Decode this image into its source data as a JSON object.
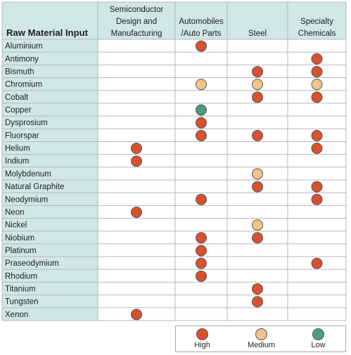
{
  "chart_data": {
    "type": "table",
    "row_header": "Raw Material Input",
    "columns": [
      [
        "Semiconductor",
        "Design and",
        "Manufacturing"
      ],
      [
        "Automobiles",
        "/Auto Parts"
      ],
      [
        "Steel"
      ],
      [
        "Specialty",
        "Chemicals"
      ]
    ],
    "rows": [
      "Aluminium",
      "Antimony",
      "Bismuth",
      "Chromium",
      "Cobalt",
      "Copper",
      "Dysprosium",
      "Fluorspar",
      "Helium",
      "Indium",
      "Molybdenum",
      "Natural Graphite",
      "Neodymium",
      "Neon",
      "Nickel",
      "Niobium",
      "Platinum",
      "Praseodymium",
      "Rhodium",
      "Titanium",
      "Tungsten",
      "Xenon"
    ],
    "ratings": [
      [
        "",
        "H",
        "",
        ""
      ],
      [
        "",
        "",
        "",
        "H"
      ],
      [
        "",
        "",
        "H",
        "H"
      ],
      [
        "",
        "M",
        "M",
        "M"
      ],
      [
        "",
        "",
        "H",
        "H"
      ],
      [
        "",
        "L",
        "",
        ""
      ],
      [
        "",
        "H",
        "",
        ""
      ],
      [
        "",
        "H",
        "H",
        "H"
      ],
      [
        "H",
        "",
        "",
        "H"
      ],
      [
        "H",
        "",
        "",
        ""
      ],
      [
        "",
        "",
        "M",
        ""
      ],
      [
        "",
        "",
        "H",
        "H"
      ],
      [
        "",
        "H",
        "",
        "H"
      ],
      [
        "H",
        "",
        "",
        ""
      ],
      [
        "",
        "",
        "M",
        ""
      ],
      [
        "",
        "H",
        "H",
        ""
      ],
      [
        "",
        "H",
        "",
        ""
      ],
      [
        "",
        "H",
        "",
        "H"
      ],
      [
        "",
        "H",
        "",
        ""
      ],
      [
        "",
        "",
        "H",
        ""
      ],
      [
        "",
        "",
        "H",
        ""
      ],
      [
        "H",
        "",
        "",
        ""
      ]
    ],
    "legend": [
      {
        "key": "H",
        "label": "High",
        "color": "#d9512e"
      },
      {
        "key": "M",
        "label": "Medium",
        "color": "#f0c48a"
      },
      {
        "key": "L",
        "label": "Low",
        "color": "#4f9a82"
      }
    ],
    "header_fill": "#cfe7e5",
    "dot_stroke": "#555555"
  }
}
